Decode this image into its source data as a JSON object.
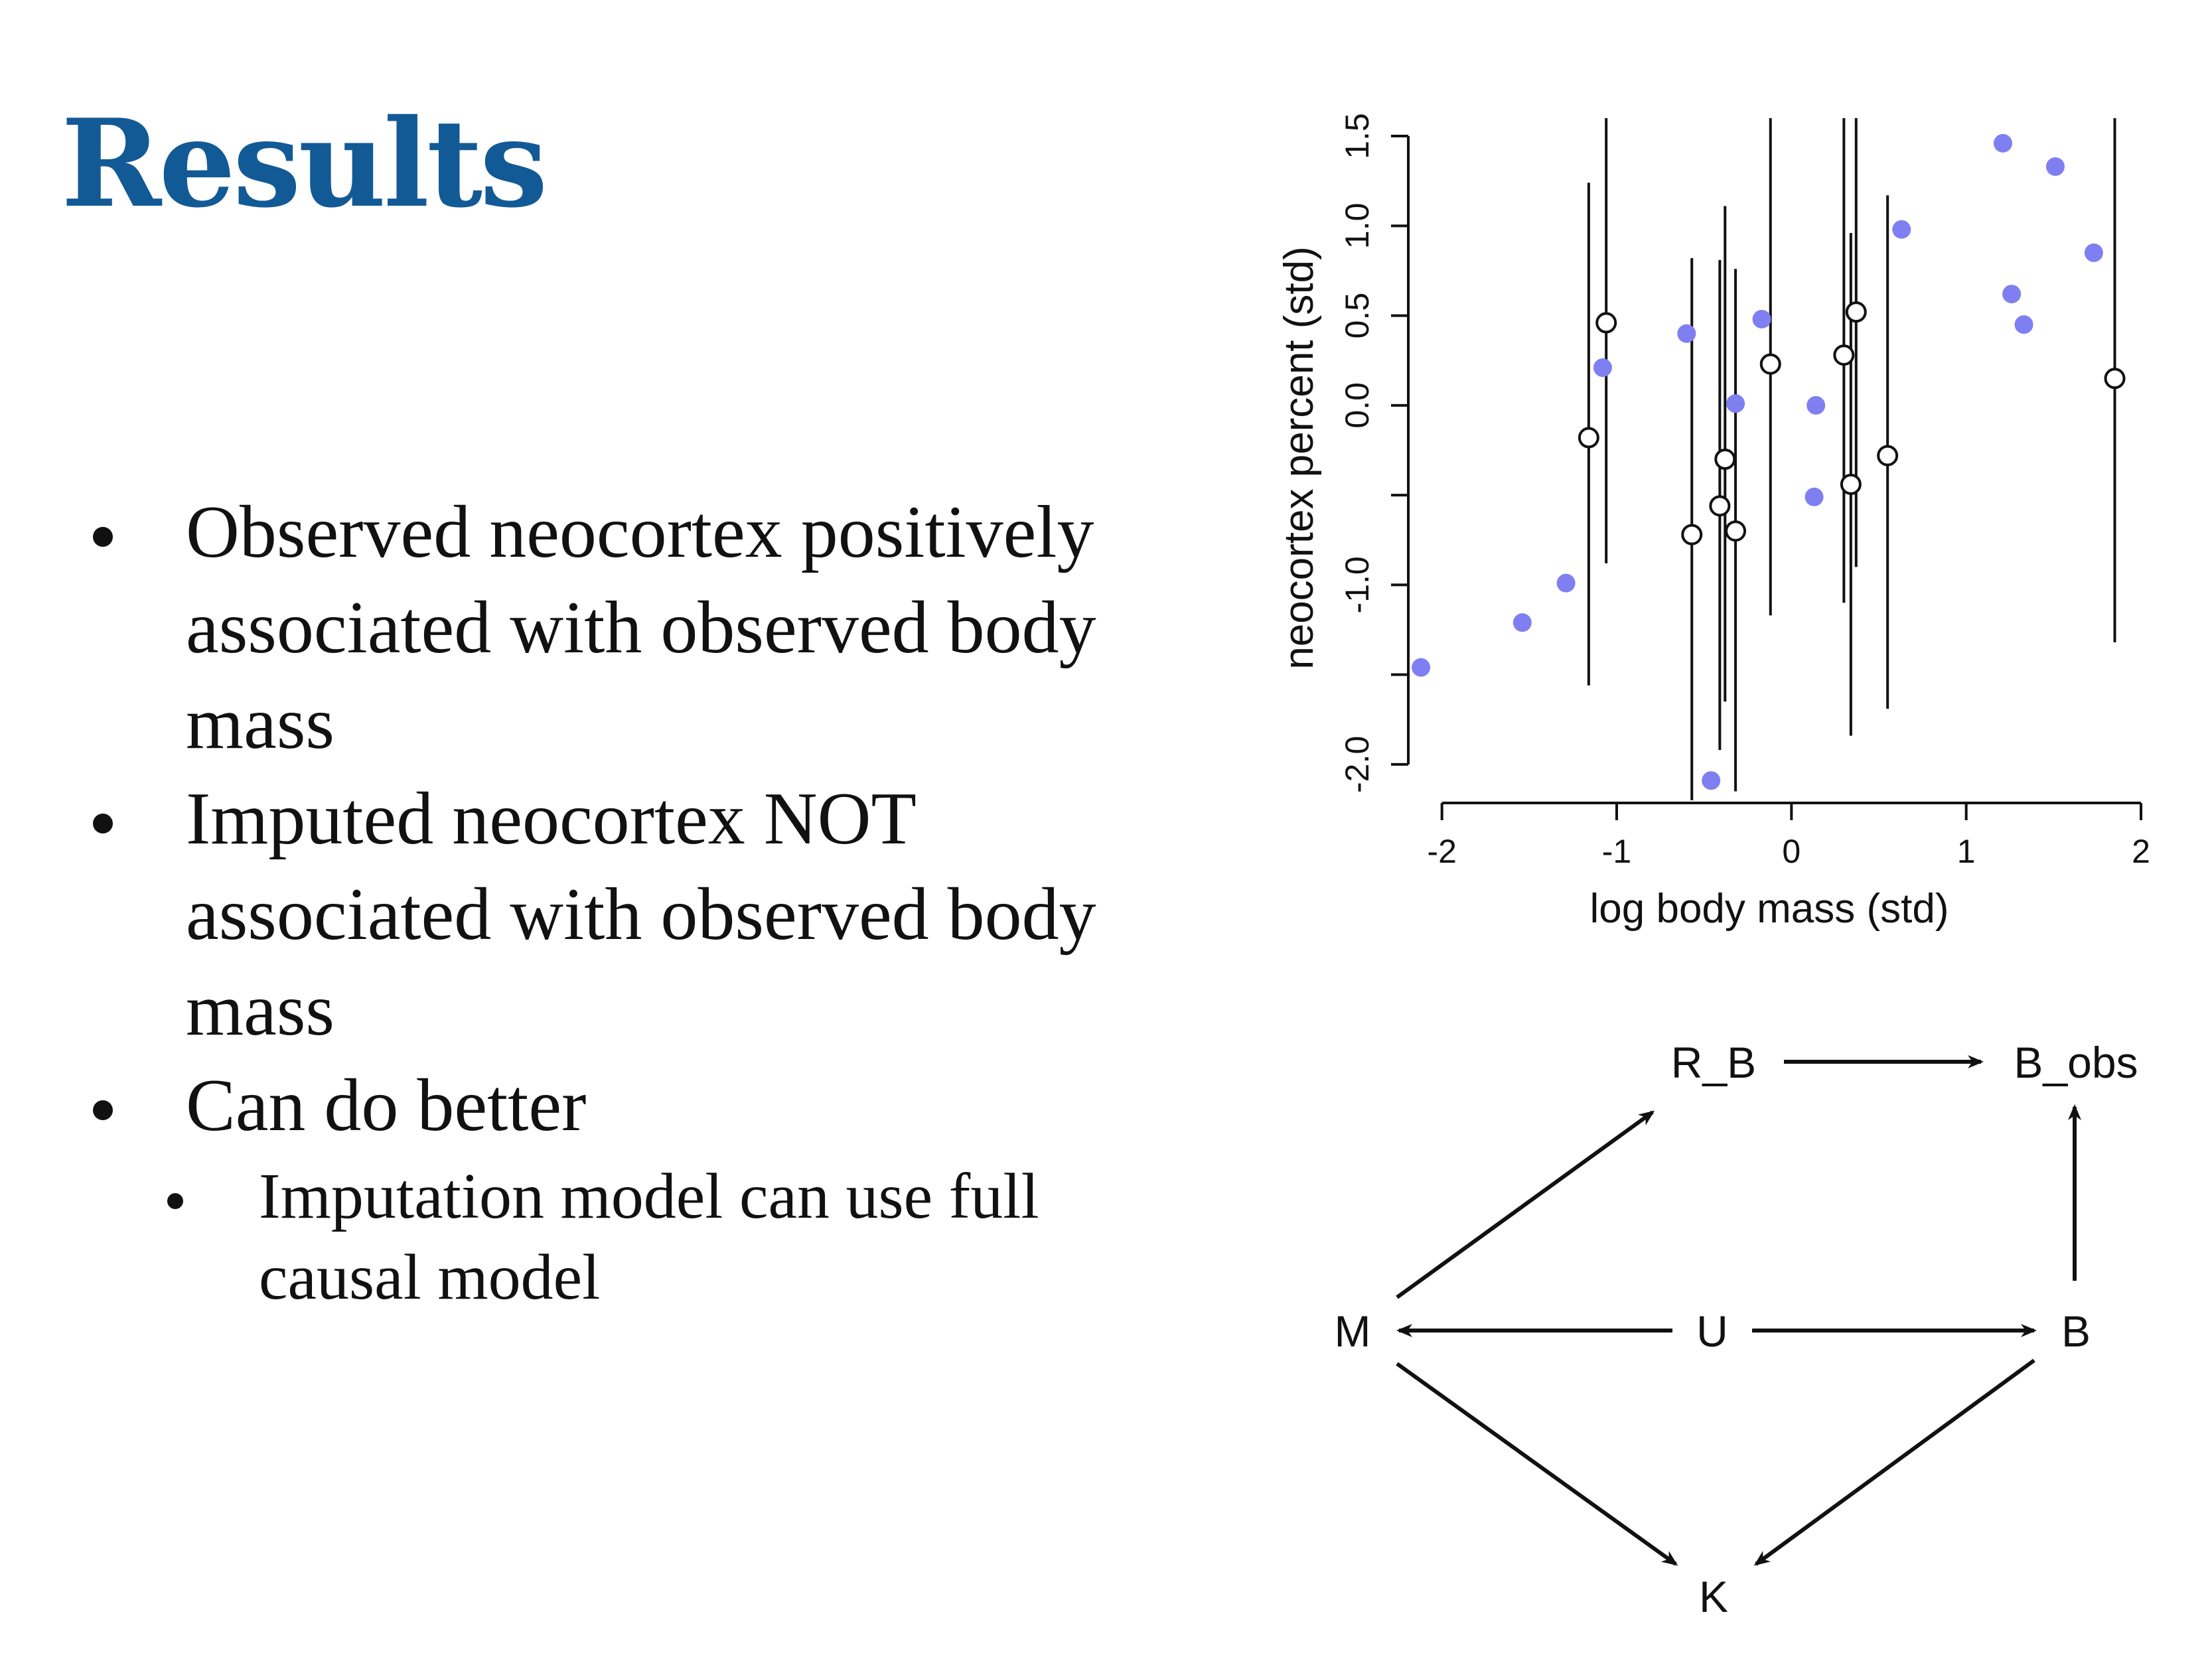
{
  "slide": {
    "title": "Results",
    "bullets": [
      "Observed neocortex positively associated with observed body mass",
      "Imputed neocortex NOT associated with observed body mass",
      "Can do better"
    ],
    "sub_bullets": [
      "Imputation model can use full causal model"
    ]
  },
  "chart_data": {
    "type": "scatter",
    "xlabel": "log body mass (std)",
    "ylabel": "neocortex percent (std)",
    "xlim": [
      -2.2,
      2.0
    ],
    "ylim": [
      -2.2,
      1.6
    ],
    "xticks": [
      "-2",
      "-1",
      "0",
      "1",
      "2"
    ],
    "yticks": [
      "-2.0",
      "-1.5",
      "-1.0",
      "-0.5",
      "0.0",
      "0.5",
      "1.0",
      "1.5"
    ],
    "yticks_labeled": [
      "-2.0",
      "-1.0",
      "0.0",
      "0.5",
      "1.0",
      "1.5"
    ],
    "grid": false,
    "series": [
      {
        "marker": "filled-circle",
        "color": "#7f7ff2",
        "x": [
          -2.12,
          -1.54,
          -1.29,
          -1.08,
          -0.6,
          -0.46,
          -0.32,
          -0.17,
          0.13,
          0.14,
          0.63,
          1.21,
          1.26,
          1.33,
          1.51,
          1.73
        ],
        "y": [
          -1.46,
          -1.21,
          -0.99,
          0.21,
          0.4,
          -2.09,
          0.01,
          0.48,
          -0.51,
          0.0,
          0.98,
          1.46,
          0.62,
          0.45,
          1.33,
          0.85
        ]
      },
      {
        "marker": "open-circle-errorbar",
        "color": "#111111",
        "x": [
          -1.16,
          -1.06,
          -0.57,
          -0.41,
          -0.38,
          -0.32,
          -0.12,
          0.3,
          0.34,
          0.37,
          0.55,
          1.85
        ],
        "y": [
          -0.18,
          0.46,
          -0.72,
          -0.56,
          -0.3,
          -0.7,
          0.23,
          0.28,
          -0.44,
          0.52,
          -0.28,
          0.15
        ],
        "lower": [
          -1.56,
          -0.88,
          -2.22,
          -1.92,
          -1.65,
          -2.15,
          -1.17,
          -1.1,
          -1.84,
          -0.9,
          -1.69,
          -1.32
        ],
        "upper": [
          1.24,
          1.6,
          0.82,
          0.81,
          1.11,
          0.76,
          1.6,
          1.6,
          0.96,
          1.6,
          1.17,
          1.6
        ]
      }
    ]
  },
  "dag": {
    "nodes": {
      "rb": "R_B",
      "bobs": "B_obs",
      "m": "M",
      "u": "U",
      "b": "B",
      "k": "K"
    }
  }
}
